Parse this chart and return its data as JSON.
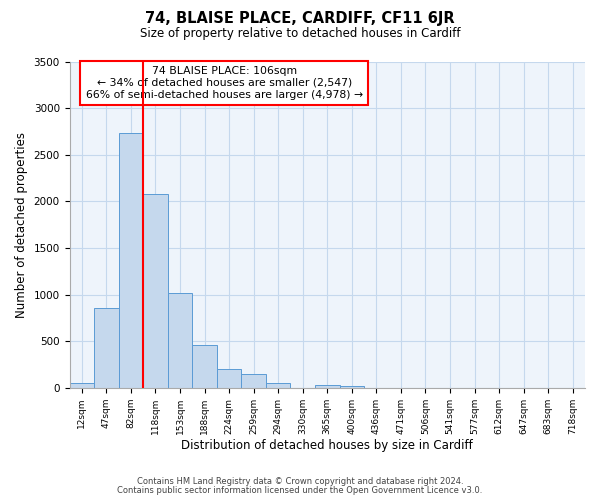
{
  "title": "74, BLAISE PLACE, CARDIFF, CF11 6JR",
  "subtitle": "Size of property relative to detached houses in Cardiff",
  "xlabel": "Distribution of detached houses by size in Cardiff",
  "ylabel": "Number of detached properties",
  "footnote1": "Contains HM Land Registry data © Crown copyright and database right 2024.",
  "footnote2": "Contains public sector information licensed under the Open Government Licence v3.0.",
  "bar_labels": [
    "12sqm",
    "47sqm",
    "82sqm",
    "118sqm",
    "153sqm",
    "188sqm",
    "224sqm",
    "259sqm",
    "294sqm",
    "330sqm",
    "365sqm",
    "400sqm",
    "436sqm",
    "471sqm",
    "506sqm",
    "541sqm",
    "577sqm",
    "612sqm",
    "647sqm",
    "683sqm",
    "718sqm"
  ],
  "bar_values": [
    55,
    860,
    2730,
    2080,
    1020,
    455,
    205,
    145,
    55,
    0,
    35,
    20,
    0,
    0,
    0,
    0,
    0,
    0,
    0,
    0,
    0
  ],
  "bar_color": "#c5d8ed",
  "bar_edge_color": "#5b9bd5",
  "grid_color": "#c5d8ed",
  "bg_color": "#eef4fb",
  "vline_color": "red",
  "annotation_line1": "74 BLAISE PLACE: 106sqm",
  "annotation_line2": "← 34% of detached houses are smaller (2,547)",
  "annotation_line3": "66% of semi-detached houses are larger (4,978) →",
  "box_color": "red",
  "ylim": [
    0,
    3500
  ],
  "yticks": [
    0,
    500,
    1000,
    1500,
    2000,
    2500,
    3000,
    3500
  ]
}
